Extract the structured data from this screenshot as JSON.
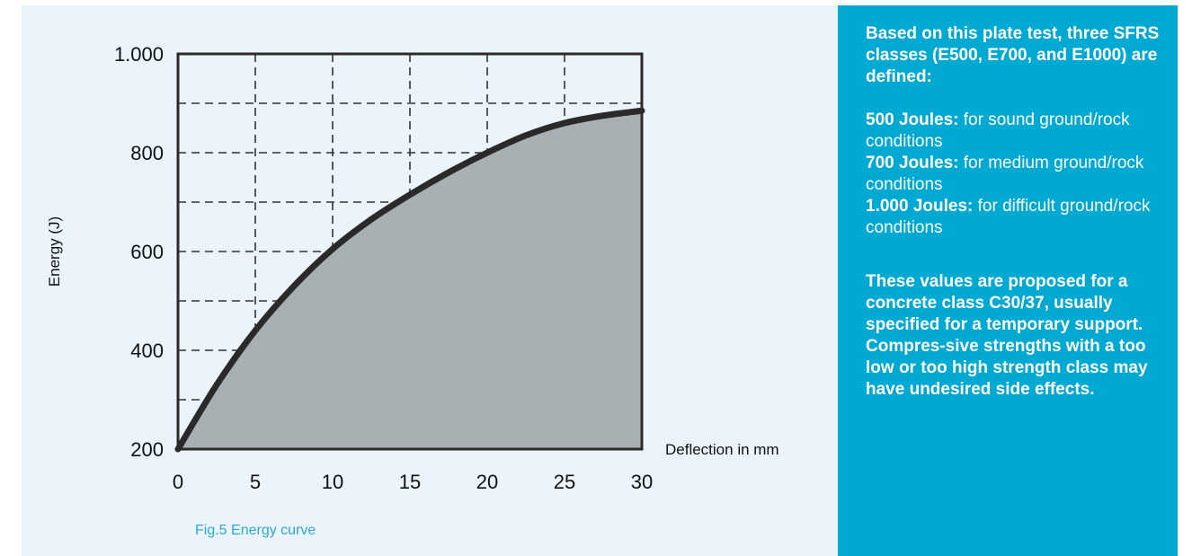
{
  "chart_data": {
    "type": "area",
    "ylabel": "Energy (J)",
    "xlabel": "Deflection in mm",
    "x_ticks": [
      0,
      5,
      10,
      15,
      20,
      25,
      30
    ],
    "y_ticks": [
      200,
      400,
      600,
      800,
      1000
    ],
    "y_tick_labels": [
      "200",
      "400",
      "600",
      "800",
      "1.000"
    ],
    "xlim": [
      0,
      30
    ],
    "ylim": [
      200,
      1000
    ],
    "grid": true,
    "x": [
      0,
      2.5,
      5,
      7.5,
      10,
      12.5,
      15,
      17.5,
      20,
      22.5,
      25,
      27.5,
      30
    ],
    "y": [
      200,
      330,
      440,
      530,
      605,
      665,
      715,
      760,
      800,
      835,
      860,
      875,
      885
    ],
    "colors": {
      "fill": "#a9b0b3",
      "line": "#2a2a2a",
      "grid": "#333333"
    }
  },
  "caption": "Fig.5 Energy curve",
  "info": {
    "intro": "Based on this plate test, three SFRS classes (E500, E700, and E1000) are defined:",
    "classes": [
      {
        "label": "500 Joules:",
        "text": " for sound ground/rock conditions"
      },
      {
        "label": "700 Joules:",
        "text": " for medium ground/rock conditions"
      },
      {
        "label": "1.000 Joules:",
        "text": " for difficult ground/rock conditions"
      }
    ],
    "note": "These values are proposed for a concrete class C30/37, usually specified for a temporary support. Compres-sive strengths with a too low or too high strength class may have undesired side effects."
  }
}
